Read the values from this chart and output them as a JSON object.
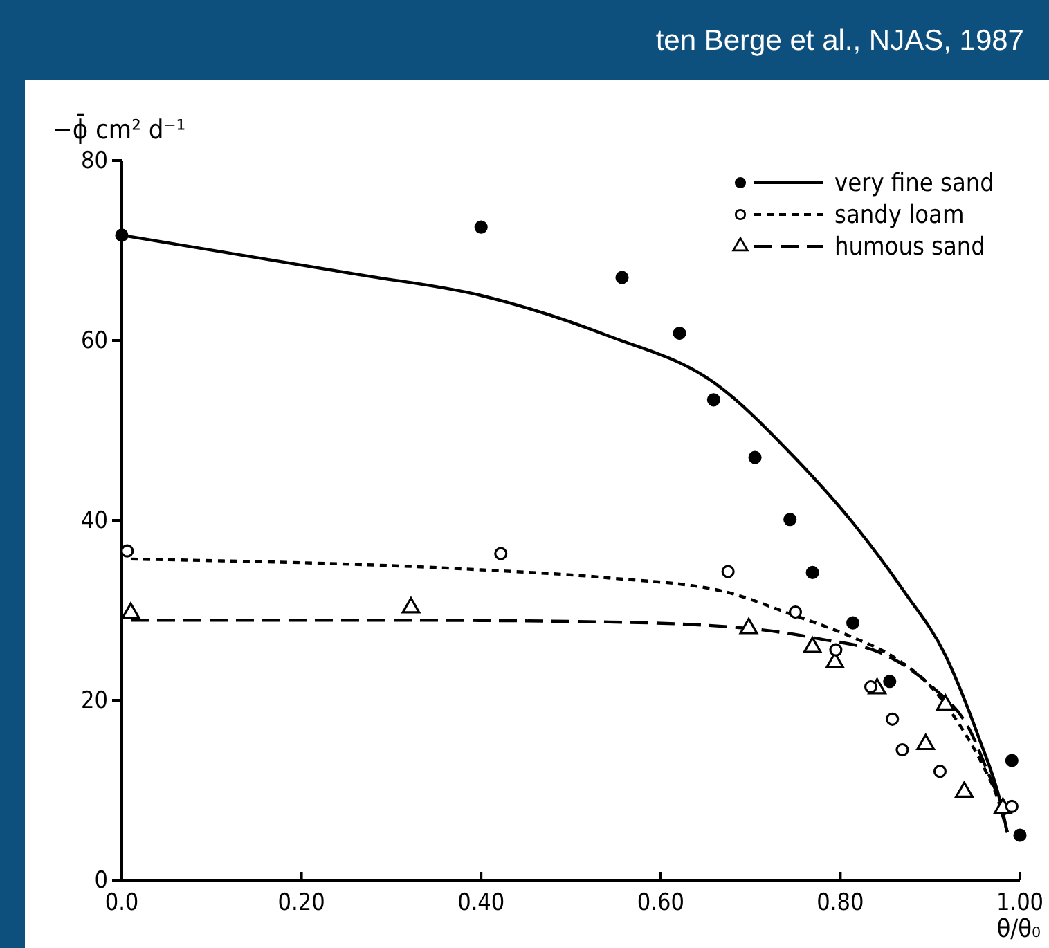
{
  "chart_data": {
    "type": "scatter",
    "ylabel": "−ϕ̄ cm² d⁻¹",
    "xlabel": "θ/θ₀",
    "annotations": [
      "ten Berge et al., NJAS, 1987"
    ],
    "xlim": [
      0,
      1.0
    ],
    "ylim": [
      0,
      80
    ],
    "xticks": [
      {
        "value": 0,
        "label": "0.0"
      },
      {
        "value": 0.2,
        "label": "0.20"
      },
      {
        "value": 0.4,
        "label": "0.40"
      },
      {
        "value": 0.6,
        "label": "0.60"
      },
      {
        "value": 0.8,
        "label": "0.80"
      },
      {
        "value": 1.0,
        "label": "1.00"
      }
    ],
    "yticks": [
      0,
      20,
      40,
      60,
      80
    ],
    "legend": "top right",
    "series": [
      {
        "name": "very fine sand",
        "marker": "circle",
        "color": "#000000",
        "x": [
          0,
          0.4,
          0.557,
          0.621,
          0.659,
          0.705,
          0.744,
          0.769,
          0.814,
          0.855,
          0.991,
          1.0
        ],
        "values": [
          71.7,
          72.6,
          67.0,
          60.8,
          53.4,
          47.0,
          40.1,
          34.2,
          28.6,
          22.1,
          13.3,
          5
        ]
      },
      {
        "name": "sandy loam",
        "marker": "circle",
        "color": "#ffffff",
        "x": [
          0.006,
          0.422,
          0.675,
          0.75,
          0.795,
          0.834,
          0.858,
          0.869,
          0.911,
          0.991
        ],
        "values": [
          36.6,
          36.3,
          34.3,
          29.8,
          25.6,
          21.5,
          17.9,
          14.5,
          12.1,
          8.2
        ]
      },
      {
        "name": "humous sand",
        "marker": "triangle",
        "color": "#ffffff",
        "x": [
          0.01,
          0.322,
          0.698,
          0.769,
          0.794,
          0.841,
          0.895,
          0.917,
          0.938,
          0.981
        ],
        "values": [
          29.7,
          30.3,
          28.0,
          25.9,
          24.2,
          21.3,
          15.1,
          19.5,
          9.8,
          8.0
        ]
      },
      {
        "type": "line",
        "line_style": "solid",
        "color": "#000000",
        "x": [
          0,
          0.265,
          0.4,
          0.542,
          0.661,
          0.747,
          0.815,
          0.871,
          0.917,
          0.954,
          0.978,
          0.986
        ],
        "values": [
          71.7,
          67.3,
          65.0,
          60.5,
          55.2,
          47.2,
          39.6,
          32.1,
          25.0,
          15.9,
          8.8,
          5.3
        ]
      },
      {
        "type": "line",
        "line_style": "dotted",
        "color": "#000000",
        "x": [
          0.01,
          0.4,
          0.542,
          0.67,
          0.747,
          0.809,
          0.861,
          0.901,
          0.932,
          0.958,
          0.974,
          0.986
        ],
        "values": [
          35.7,
          34.5,
          33.6,
          32.1,
          29.5,
          27.2,
          24.7,
          21.5,
          17.4,
          12.9,
          9.4,
          5.3
        ]
      },
      {
        "type": "line",
        "line_style": "dashed",
        "color": "#000000",
        "x": [
          0.01,
          0.3,
          0.542,
          0.696,
          0.773,
          0.851,
          0.901,
          0.943,
          0.969,
          0.985
        ],
        "values": [
          28.9,
          28.9,
          28.7,
          28.0,
          26.9,
          25.0,
          21.6,
          16.9,
          10.9,
          7.3
        ]
      }
    ]
  }
}
